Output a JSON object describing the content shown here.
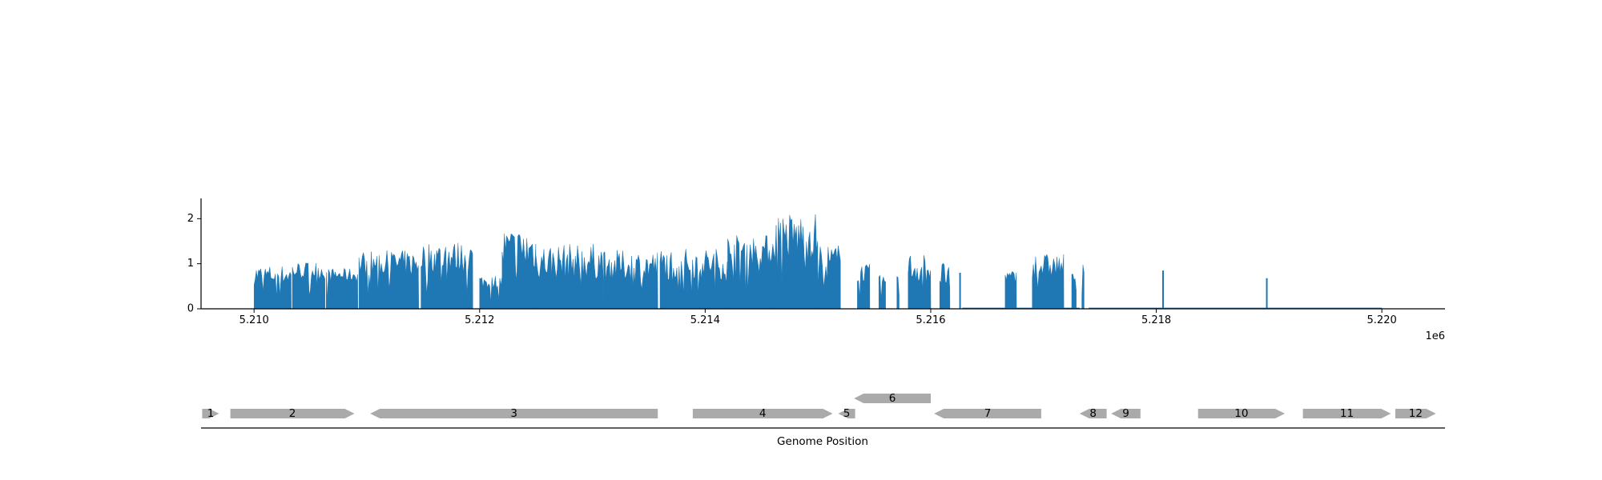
{
  "chart_data": [
    {
      "type": "bar",
      "ylim": [
        0,
        2.45
      ],
      "xlim": [
        5209530,
        5220560
      ],
      "yticks": [
        {
          "value": 0,
          "label": "0"
        },
        {
          "value": 1,
          "label": "1"
        },
        {
          "value": 2,
          "label": "2"
        }
      ],
      "xticks": [
        {
          "value": 5210000,
          "label": "5.210"
        },
        {
          "value": 5212000,
          "label": "5.212"
        },
        {
          "value": 5214000,
          "label": "5.214"
        },
        {
          "value": 5216000,
          "label": "5.216"
        },
        {
          "value": 5218000,
          "label": "5.218"
        },
        {
          "value": 5220000,
          "label": "5.220"
        }
      ],
      "x_offset_label": "1e6",
      "color": "#1f77b4",
      "baseline_segments": [
        [
          5216280,
          5217320
        ],
        [
          5217400,
          5220000
        ]
      ],
      "segments": [
        {
          "start": 5210000,
          "end": 5210330,
          "mean": 0.75,
          "amp": 0.22
        },
        {
          "start": 5210340,
          "end": 5210630,
          "mean": 0.85,
          "amp": 0.2
        },
        {
          "start": 5210640,
          "end": 5210920,
          "mean": 0.75,
          "amp": 0.15
        },
        {
          "start": 5210930,
          "end": 5211460,
          "mean": 1.0,
          "amp": 0.3
        },
        {
          "start": 5211480,
          "end": 5211940,
          "mean": 1.15,
          "amp": 0.35
        },
        {
          "start": 5212000,
          "end": 5212200,
          "mean": 0.6,
          "amp": 0.15
        },
        {
          "start": 5212200,
          "end": 5212500,
          "mean": 1.3,
          "amp": 0.5
        },
        {
          "start": 5212500,
          "end": 5213100,
          "mean": 1.05,
          "amp": 0.4
        },
        {
          "start": 5213100,
          "end": 5213580,
          "mean": 0.95,
          "amp": 0.35
        },
        {
          "start": 5213600,
          "end": 5214200,
          "mean": 1.0,
          "amp": 0.35
        },
        {
          "start": 5214200,
          "end": 5214600,
          "mean": 1.3,
          "amp": 0.35
        },
        {
          "start": 5214600,
          "end": 5215000,
          "mean": 1.6,
          "amp": 0.55
        },
        {
          "start": 5215000,
          "end": 5215200,
          "mean": 1.05,
          "amp": 0.4
        },
        {
          "start": 5215350,
          "end": 5215460,
          "mean": 0.8,
          "amp": 0.2
        },
        {
          "start": 5215540,
          "end": 5215600,
          "mean": 0.6,
          "amp": 0.15
        },
        {
          "start": 5215700,
          "end": 5215720,
          "mean": 0.7,
          "amp": 0.05
        },
        {
          "start": 5215800,
          "end": 5216000,
          "mean": 0.9,
          "amp": 0.35
        },
        {
          "start": 5216080,
          "end": 5216170,
          "mean": 0.75,
          "amp": 0.3
        },
        {
          "start": 5216660,
          "end": 5216760,
          "mean": 0.7,
          "amp": 0.15
        },
        {
          "start": 5216900,
          "end": 5217180,
          "mean": 0.95,
          "amp": 0.28
        },
        {
          "start": 5217250,
          "end": 5217290,
          "mean": 0.7,
          "amp": 0.1
        },
        {
          "start": 5217340,
          "end": 5217360,
          "mean": 1.0,
          "amp": 0.2
        }
      ],
      "spikes": [
        {
          "x": 5216260,
          "y": 0.8
        },
        {
          "x": 5218060,
          "y": 0.85
        },
        {
          "x": 5218980,
          "y": 0.68
        }
      ]
    },
    {
      "type": "gene-track",
      "xlabel": "Genome Position",
      "color": "#aaaaaa",
      "genes": [
        {
          "label": "1",
          "start": 5209540,
          "end": 5209690,
          "strand": "+",
          "row": 0
        },
        {
          "label": "2",
          "start": 5209790,
          "end": 5210890,
          "strand": "+",
          "row": 0
        },
        {
          "label": "3",
          "start": 5211030,
          "end": 5213580,
          "strand": "-",
          "row": 0
        },
        {
          "label": "4",
          "start": 5213890,
          "end": 5215130,
          "strand": "+",
          "row": 0
        },
        {
          "label": "5",
          "start": 5215180,
          "end": 5215330,
          "strand": "-",
          "row": 0
        },
        {
          "label": "6",
          "start": 5215320,
          "end": 5216000,
          "strand": "-",
          "row": 1
        },
        {
          "label": "7",
          "start": 5216030,
          "end": 5216980,
          "strand": "-",
          "row": 0
        },
        {
          "label": "8",
          "start": 5217320,
          "end": 5217560,
          "strand": "-",
          "row": 0
        },
        {
          "label": "9",
          "start": 5217600,
          "end": 5217860,
          "strand": "-",
          "row": 0
        },
        {
          "label": "10",
          "start": 5218370,
          "end": 5219140,
          "strand": "+",
          "row": 0
        },
        {
          "label": "11",
          "start": 5219300,
          "end": 5220080,
          "strand": "+",
          "row": 0
        },
        {
          "label": "12",
          "start": 5220120,
          "end": 5220480,
          "strand": "+",
          "row": 0
        }
      ]
    }
  ]
}
